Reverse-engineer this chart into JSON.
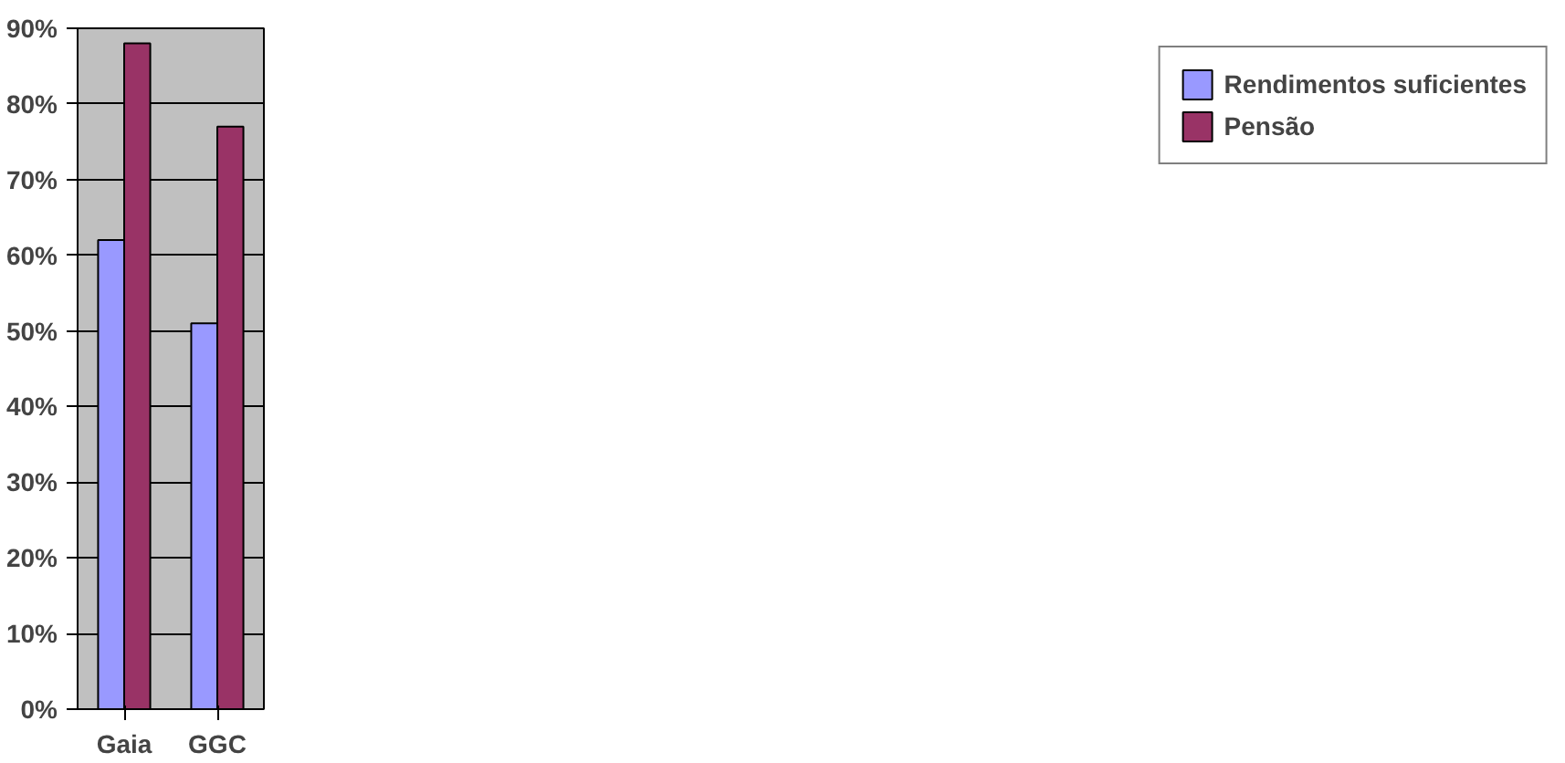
{
  "chart_data": {
    "type": "bar",
    "categories": [
      "Gaia",
      "GGC"
    ],
    "series": [
      {
        "name": "Rendimentos suficientes",
        "color": "#9999ff",
        "values": [
          62,
          51
        ]
      },
      {
        "name": "Pensão",
        "color": "#993366",
        "values": [
          88,
          77
        ]
      }
    ],
    "ylim": [
      0,
      90
    ],
    "yticks": [
      {
        "value": 0,
        "label": "0%"
      },
      {
        "value": 10,
        "label": "10%"
      },
      {
        "value": 20,
        "label": "20%"
      },
      {
        "value": 30,
        "label": "30%"
      },
      {
        "value": 40,
        "label": "40%"
      },
      {
        "value": 50,
        "label": "50%"
      },
      {
        "value": 60,
        "label": "60%"
      },
      {
        "value": 70,
        "label": "70%"
      },
      {
        "value": 80,
        "label": "80%"
      },
      {
        "value": 90,
        "label": "90%"
      }
    ],
    "grid": "y",
    "legend": "right"
  }
}
